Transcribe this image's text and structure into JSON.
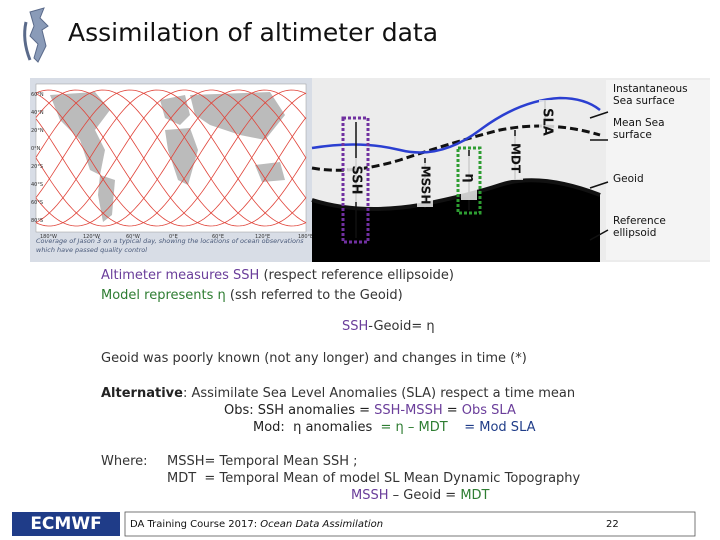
{
  "header": {
    "title": "Assimilation of altimeter data"
  },
  "figure": {
    "map": {
      "lat_labels": [
        "60°N",
        "40°N",
        "20°N",
        "0°N",
        "20°S",
        "40°S",
        "60°S",
        "80°S"
      ],
      "lon_labels": [
        "180°W",
        "120°W",
        "60°W",
        "0°E",
        "60°E",
        "120°E",
        "180°E"
      ],
      "caption": "Coverage of Jason 3 on a typical day, showing the locations of ocean observations which have passed quality control"
    },
    "diagram": {
      "vertical_labels": [
        {
          "text": "SSH",
          "color": "#111111"
        },
        {
          "text": "MSSH",
          "color": "#111111"
        },
        {
          "text": "η",
          "color": "#111111"
        },
        {
          "text": "MDT",
          "color": "#111111"
        },
        {
          "text": "SLA",
          "color": "#111111"
        }
      ],
      "legend": [
        "Instantaneous Sea surface",
        "Mean Sea surface",
        "Geoid",
        "Reference ellipsoid"
      ]
    }
  },
  "body": {
    "lines": [
      {
        "runs": [
          {
            "text": "Altimeter measures SSH",
            "color": "#6a3d9a"
          },
          {
            "text": " (respect reference ellipsoide)",
            "color": "#333333"
          }
        ]
      },
      {
        "runs": [
          {
            "text": "Model represents η",
            "color": "#2e7d32"
          },
          {
            "text": " (ssh referred to the Geoid)",
            "color": "#333333"
          }
        ]
      },
      {
        "runs": [
          {
            "text": "SSH",
            "color": "#6a3d9a"
          },
          {
            "text": "-Geoid= η",
            "color": "#333333"
          }
        ]
      },
      {
        "runs": [
          {
            "text": "Geoid was poorly known (not any longer) and changes in time (*)",
            "color": "#333333"
          }
        ]
      },
      {
        "runs": [
          {
            "text": "Alternative",
            "color": "#222222",
            "bold": true
          },
          {
            "text": ": Assimilate Sea Level Anomalies (SLA) respect a time mean",
            "color": "#333333"
          }
        ]
      },
      {
        "runs": [
          {
            "text": "Obs: SSH anomalies = ",
            "color": "#222222"
          },
          {
            "text": "SSH-MSSH",
            "color": "#6a3d9a"
          },
          {
            "text": " = ",
            "color": "#222222"
          },
          {
            "text": "Obs SLA",
            "color": "#6a3d9a"
          }
        ]
      },
      {
        "runs": [
          {
            "text": "Mod:  η anomalies  ",
            "color": "#222222"
          },
          {
            "text": "= η – MDT",
            "color": "#2e7d32"
          },
          {
            "text": "    = Mod SLA",
            "color": "#1f3c88"
          }
        ]
      },
      {
        "runs": [
          {
            "text": "Where:",
            "color": "#333333"
          }
        ]
      },
      {
        "runs": [
          {
            "text": "MSSH= Temporal Mean SSH ;",
            "color": "#333333"
          }
        ]
      },
      {
        "runs": [
          {
            "text": "MDT  = Temporal Mean of model SL Mean Dynamic Topography",
            "color": "#333333"
          }
        ]
      },
      {
        "runs": [
          {
            "text": "MSSH",
            "color": "#6a3d9a"
          },
          {
            "text": " – Geoid = ",
            "color": "#333333"
          },
          {
            "text": "MDT",
            "color": "#2e7d32"
          }
        ]
      }
    ]
  },
  "footer": {
    "logo": "ECMWF",
    "course": "DA Training Course 2017:",
    "course_italic": "Ocean Data Assimilation",
    "page": "22"
  }
}
